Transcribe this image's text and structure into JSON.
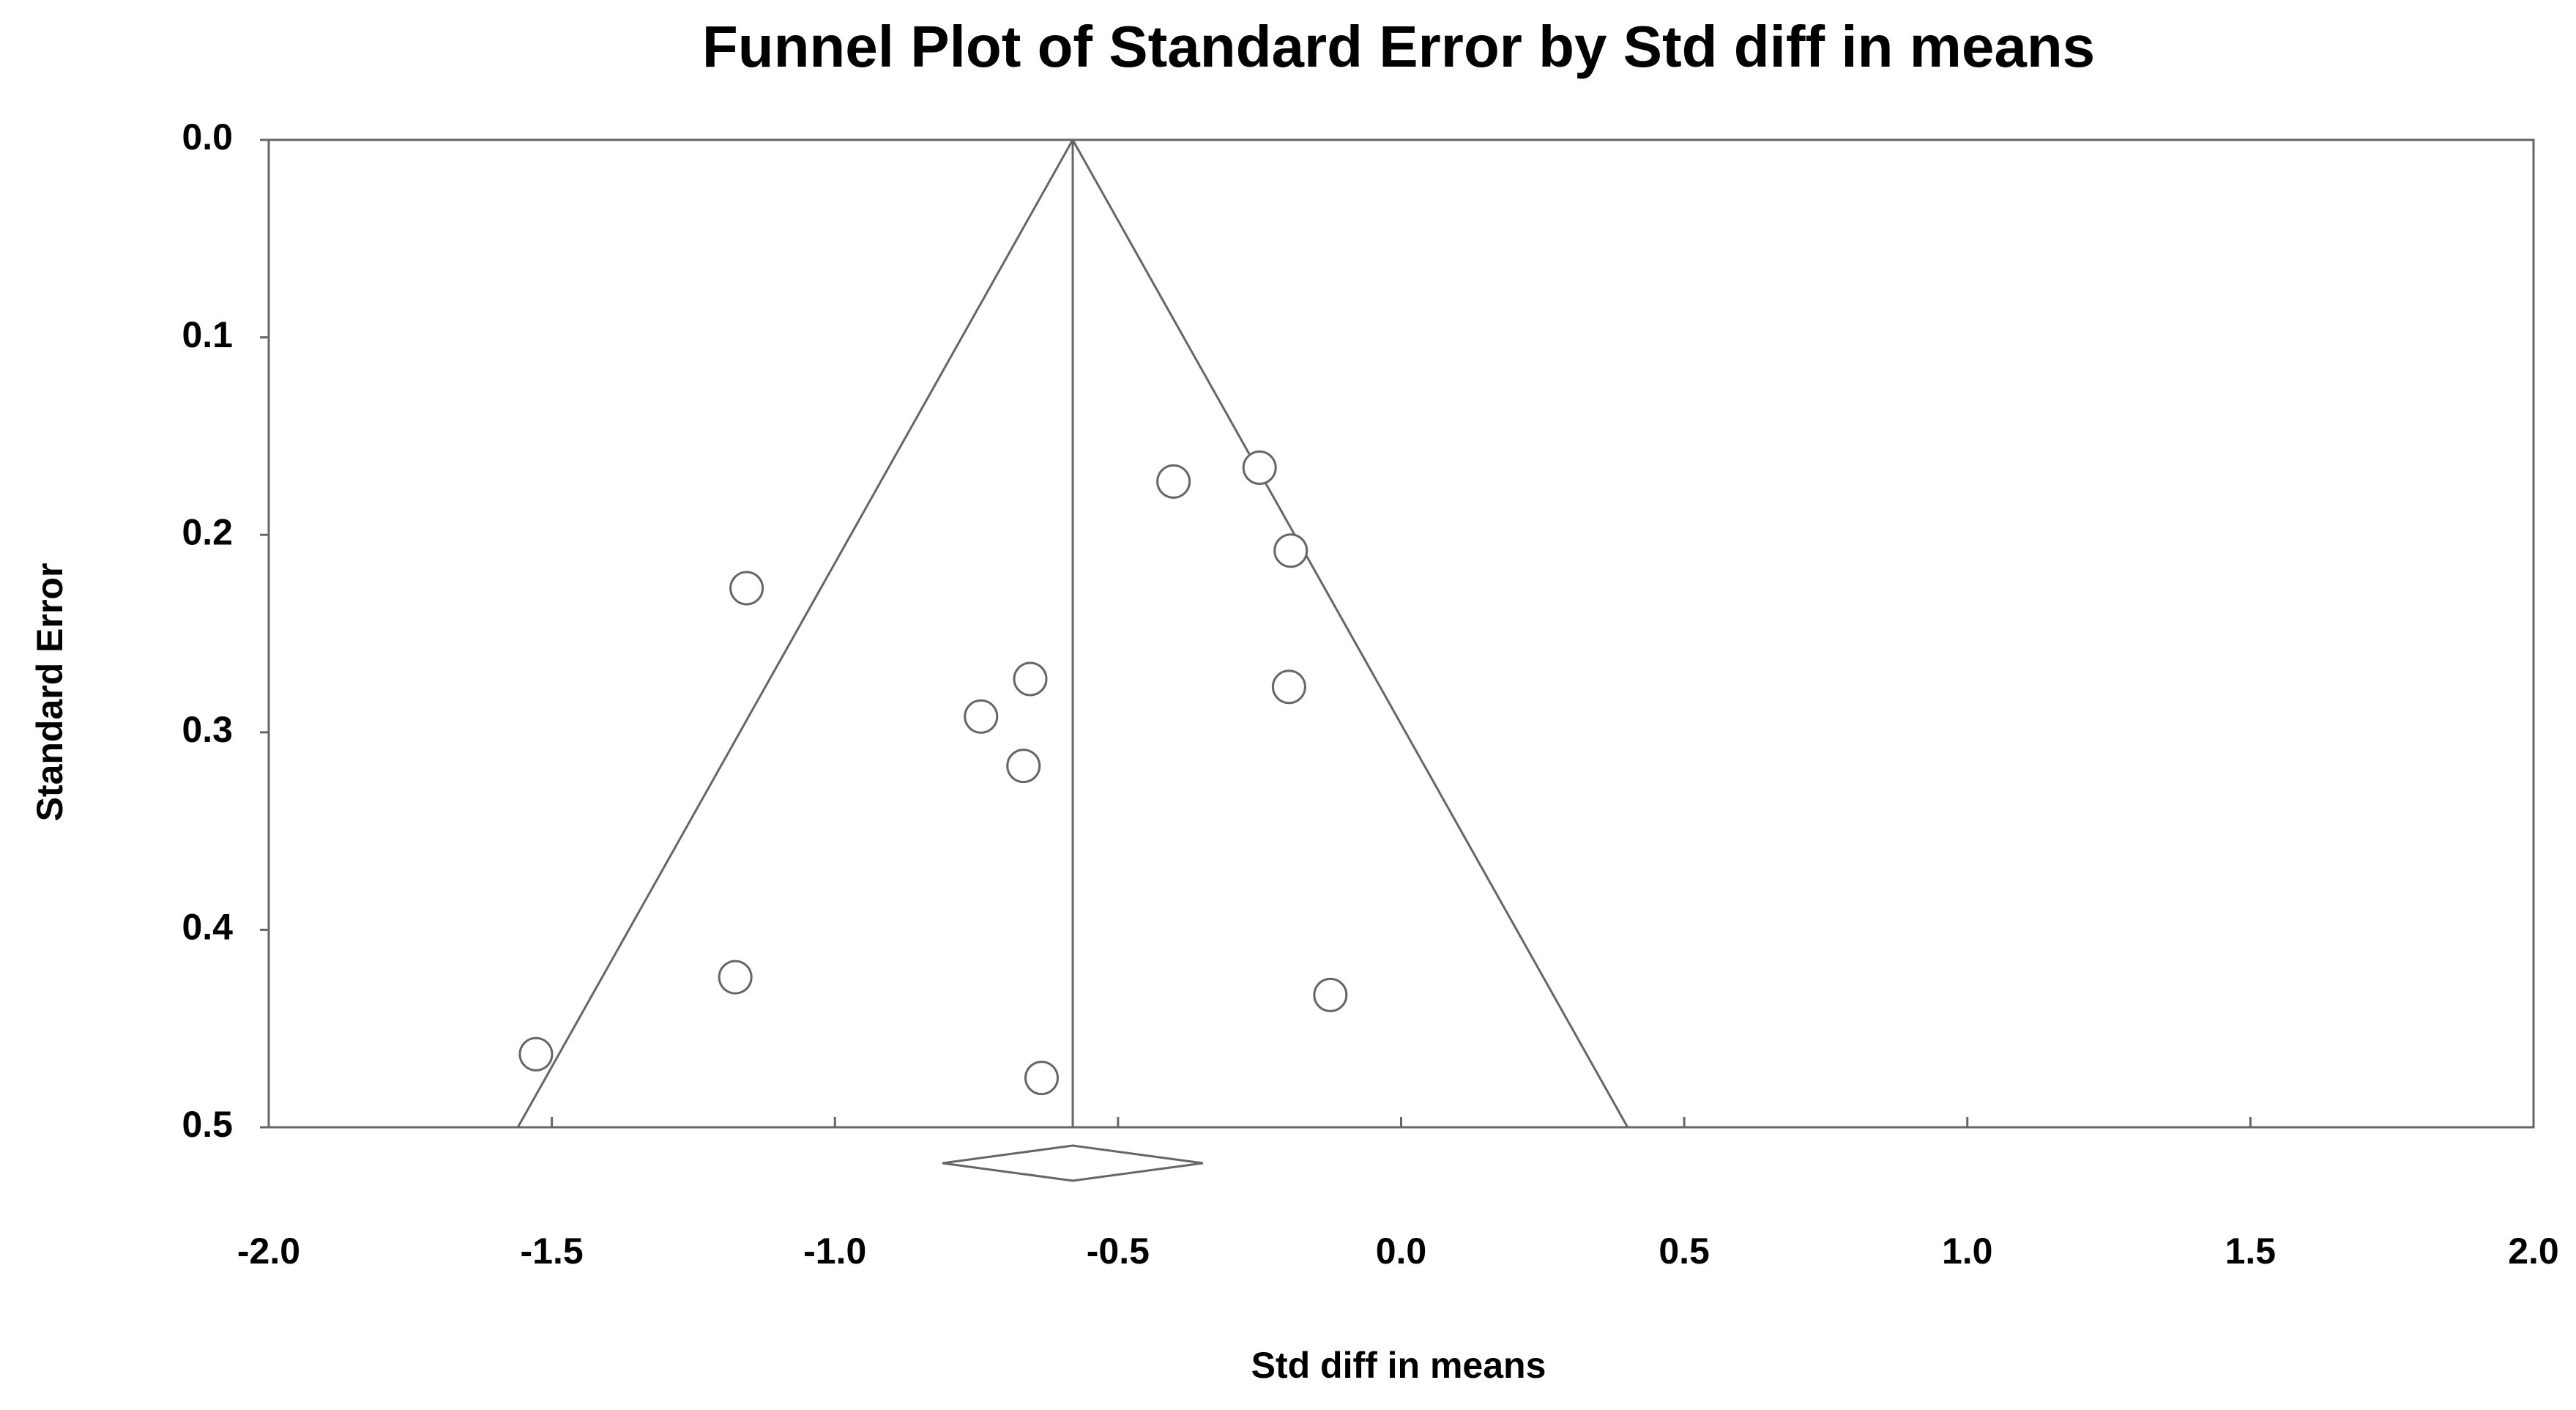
{
  "chart_data": {
    "type": "scatter",
    "title": "Funnel Plot of Standard Error by Std diff in means",
    "x_label": "Std diff in means",
    "y_label": "Standard Error",
    "x": [
      -1.156,
      -0.402,
      -0.25,
      -0.195,
      -0.655,
      -0.742,
      -0.198,
      -0.667,
      -1.176,
      -0.125,
      -1.528,
      -0.635
    ],
    "values": [
      0.227,
      0.173,
      0.166,
      0.208,
      0.273,
      0.292,
      0.277,
      0.317,
      0.424,
      0.433,
      0.463,
      0.475
    ],
    "summary": {
      "estimate": -0.58,
      "lower": -0.81,
      "upper": -0.35
    },
    "funnel": {
      "lower": -1.56,
      "upper": 0.4
    },
    "xlim": [
      -2.0,
      2.0
    ],
    "xticks": [
      {
        "value": -2,
        "label": "-2.0"
      },
      -1.5,
      {
        "value": -1,
        "label": "-1.0"
      },
      -0.5,
      {
        "value": 0,
        "label": "0.0"
      },
      0.5,
      {
        "value": 1,
        "label": "1.0"
      },
      1.5,
      {
        "value": 2,
        "label": "2.0"
      }
    ],
    "ylim": [
      0,
      0.5
    ],
    "yticks": [
      {
        "value": 0,
        "label": "0.0"
      },
      0.1,
      0.2,
      0.3,
      0.4,
      0.5
    ],
    "y_inverted": true,
    "color": "#666666"
  }
}
